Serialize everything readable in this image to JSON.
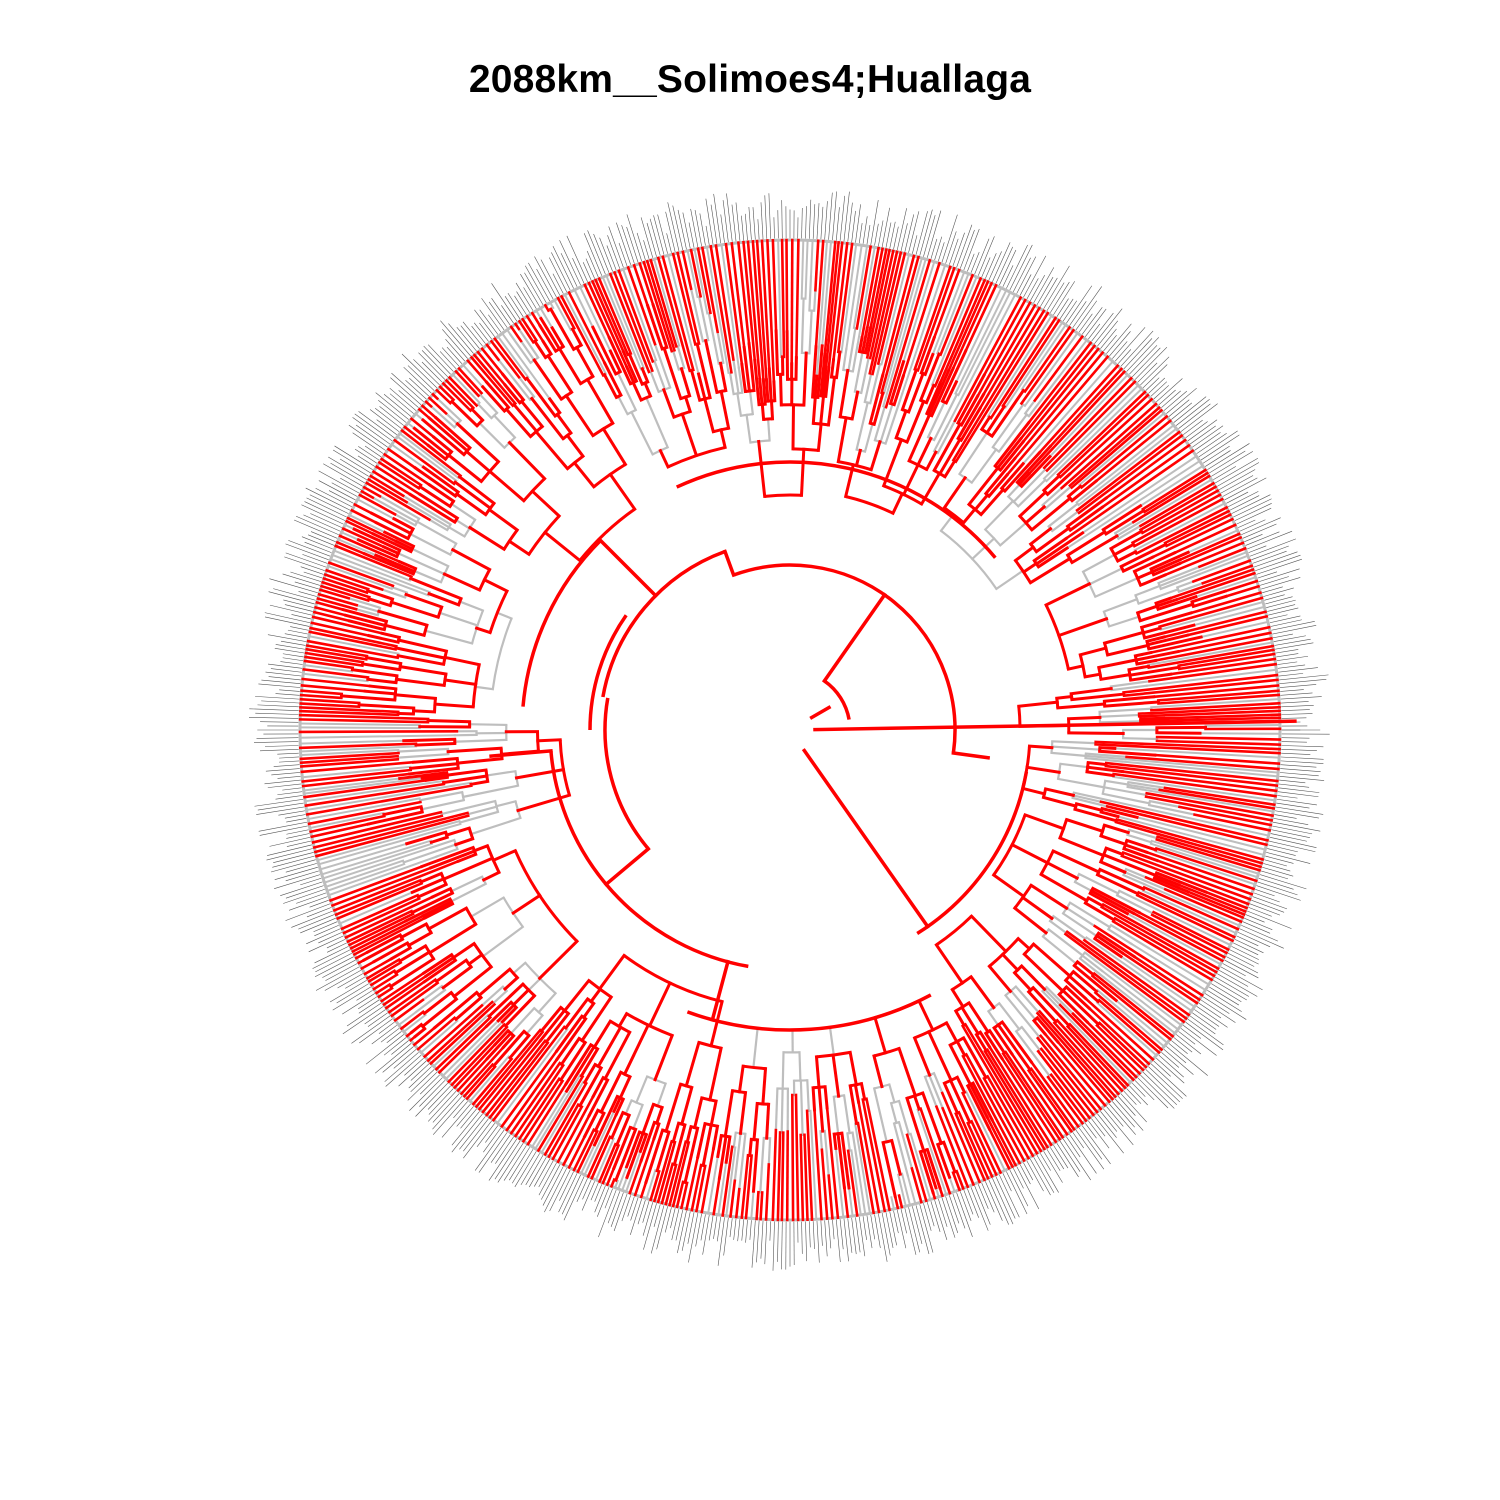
{
  "title": "2088km__Solimoes4;Huallaga",
  "colors": {
    "highlight_branch": "#ff0000",
    "background_branch": "#bebebe",
    "tip_label": "#555555",
    "background": "#ffffff"
  }
}
